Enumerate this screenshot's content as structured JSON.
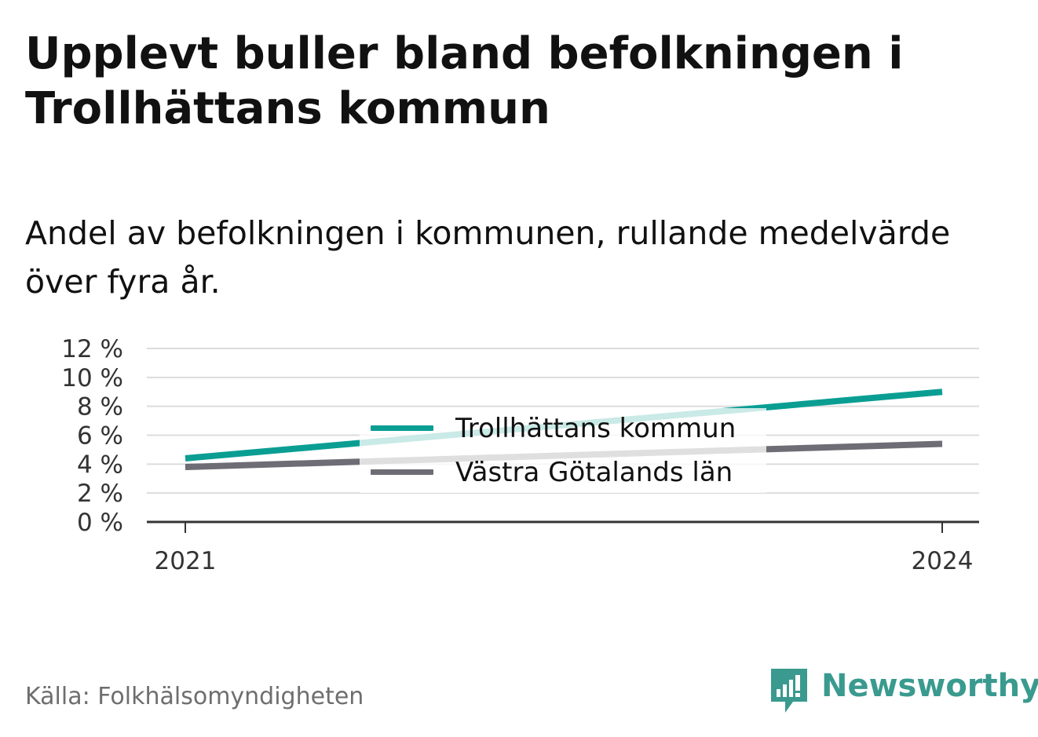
{
  "header": {
    "title": "Upplevt buller bland befolkningen i Trollhättans kommun",
    "subtitle": "Andel av befolkningen i kommunen, rullande medelvärde över fyra år."
  },
  "chart_data": {
    "type": "line",
    "x": [
      2021,
      2024
    ],
    "x_tick_labels": [
      "2021",
      "2024"
    ],
    "y_tick_labels": [
      "0 %",
      "2 %",
      "4 %",
      "6 %",
      "8 %",
      "10 %",
      "12 %"
    ],
    "y_ticks": [
      0,
      2,
      4,
      6,
      8,
      10,
      12
    ],
    "ylim": [
      0,
      12
    ],
    "grid": true,
    "legend_position": "center",
    "series": [
      {
        "name": "Trollhättans kommun",
        "values": [
          4.4,
          9.0
        ],
        "color": "#0a9e93"
      },
      {
        "name": "Västra Götalands län",
        "values": [
          3.8,
          5.4
        ],
        "color": "#6e6c74"
      }
    ]
  },
  "footer": {
    "source": "Källa: Folkhälsomyndigheten",
    "brand": "Newsworthy",
    "brand_color": "#3a9a8f",
    "brand_icon": "chart-bubble-icon"
  }
}
